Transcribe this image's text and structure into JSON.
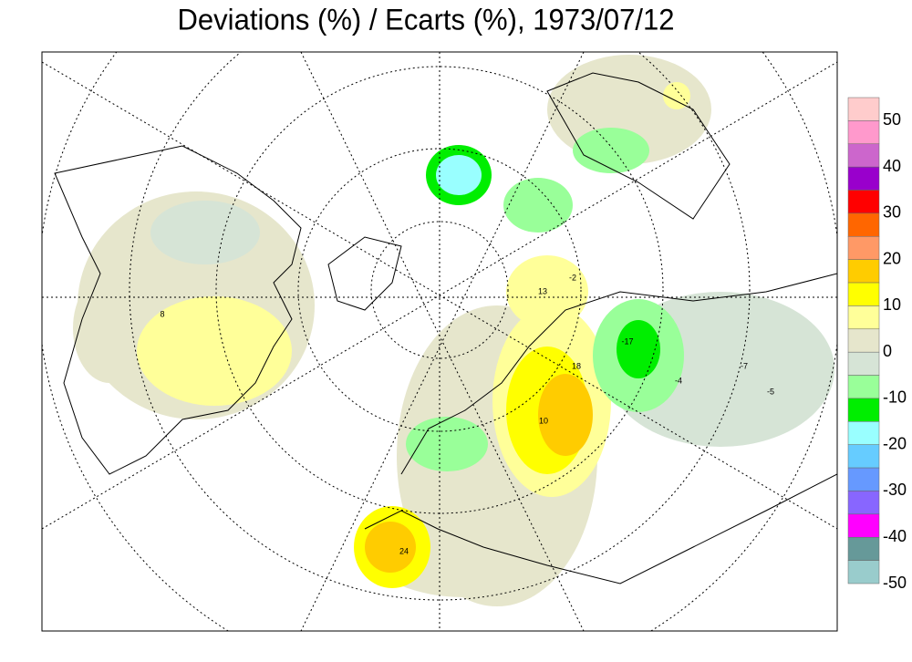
{
  "title": "Deviations (%) / Ecarts (%), 1973/07/12",
  "colorbar": {
    "colors": [
      "#ffcccc",
      "#ff99cc",
      "#cc66cc",
      "#9900cc",
      "#ff0000",
      "#ff6600",
      "#ff9966",
      "#ffcc00",
      "#ffff00",
      "#ffff99",
      "#e6e6cc",
      "#d6e4d6",
      "#99ff99",
      "#00ee00",
      "#99ffff",
      "#66ccff",
      "#6699ff",
      "#8866ff",
      "#ff00ff",
      "#669999",
      "#99cccc"
    ],
    "ticks": [
      50,
      40,
      30,
      20,
      10,
      0,
      -10,
      -20,
      -30,
      -40,
      -50
    ]
  },
  "contour_labels": [
    "24",
    "18",
    "10",
    "13",
    "-2",
    "-17",
    "-4",
    "-7",
    "-5",
    "8"
  ]
}
